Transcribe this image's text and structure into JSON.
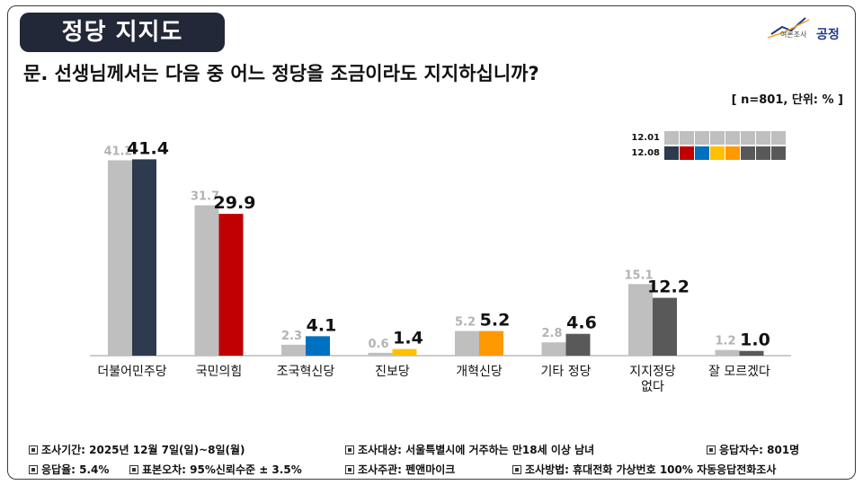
{
  "header": {
    "title": "정당 지지도",
    "logo_sub": "여론조사",
    "logo_main": "공정"
  },
  "question": "문. 선생님께서는 다음 중 어느 정당을 조금이라도 지지하십니까?",
  "unit_note": "[ n=801, 단위: % ]",
  "colors": {
    "previous": "#bfbfbf",
    "parties": [
      "#2e3a4e",
      "#c00000",
      "#0070c0",
      "#ffc000",
      "#ff9900",
      "#595959",
      "#595959",
      "#595959"
    ]
  },
  "legend": {
    "rows": [
      {
        "label": "12.01",
        "colors": [
          "#bfbfbf",
          "#bfbfbf",
          "#bfbfbf",
          "#bfbfbf",
          "#bfbfbf",
          "#bfbfbf",
          "#bfbfbf",
          "#bfbfbf"
        ]
      },
      {
        "label": "12.08",
        "colors": [
          "#2e3a4e",
          "#c00000",
          "#0070c0",
          "#ffc000",
          "#ff9900",
          "#595959",
          "#595959",
          "#595959"
        ]
      }
    ]
  },
  "chart_data": {
    "type": "bar",
    "categories": [
      "더불어민주당",
      "국민의힘",
      "조국혁신당",
      "진보당",
      "개혁신당",
      "기타 정당",
      "지지정당 없다",
      "잘 모르겠다"
    ],
    "category_lines": [
      [
        "더불어민주당"
      ],
      [
        "국민의힘"
      ],
      [
        "조국혁신당"
      ],
      [
        "진보당"
      ],
      [
        "개혁신당"
      ],
      [
        "기타 정당"
      ],
      [
        "지지정당",
        "없다"
      ],
      [
        "잘 모르겠다"
      ]
    ],
    "series": [
      {
        "name": "12.01",
        "values": [
          41.2,
          31.7,
          2.3,
          0.6,
          5.2,
          2.8,
          15.1,
          1.2
        ]
      },
      {
        "name": "12.08",
        "values": [
          41.4,
          29.9,
          4.1,
          1.4,
          5.2,
          4.6,
          12.2,
          1.0
        ]
      }
    ],
    "value_labels": [
      [
        "41.2",
        "31.7",
        "2.3",
        "0.6",
        "5.2",
        "2.8",
        "15.1",
        "1.2"
      ],
      [
        "41.4",
        "29.9",
        "4.1",
        "1.4",
        "5.2",
        "4.6",
        "12.2",
        "1.0"
      ]
    ],
    "ylim": [
      0,
      50
    ],
    "grid": false,
    "legend_position": "top-right"
  },
  "footer": {
    "row1": [
      "조사기간: 2025년 12월 7일(일)~8일(월)",
      "조사대상: 서울특별시에 거주하는 만18세 이상 남녀",
      "응답자수: 801명"
    ],
    "row2": [
      "응답율: 5.4%",
      "표본오차: 95%신뢰수준 ± 3.5%",
      "조사주관: 펜앤마이크",
      "조사방법: 휴대전화 가상번호 100% 자동응답전화조사"
    ]
  }
}
